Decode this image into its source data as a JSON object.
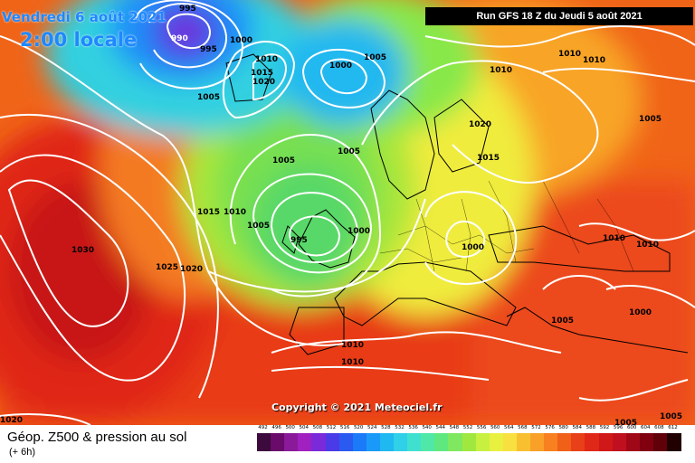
{
  "header": {
    "run_info": "Run GFS 18 Z du Jeudi 5 août 2021",
    "valid_date": "Vendredi 6 août 2021",
    "valid_time": "2:00 locale"
  },
  "map": {
    "copyright": "Copyright © 2021 Meteociel.fr",
    "isobar_labels": [
      "995",
      "990",
      "995",
      "1000",
      "1010",
      "1015",
      "1020",
      "1005",
      "1000",
      "1005",
      "1010",
      "1010",
      "1010",
      "1005",
      "1020",
      "1015",
      "1005",
      "1005",
      "1015",
      "1010",
      "1005",
      "995",
      "1000",
      "1000",
      "1010",
      "1030",
      "1025",
      "1020",
      "1010",
      "1005",
      "1000",
      "1010",
      "1010",
      "1020",
      "1005",
      "1005"
    ],
    "pressure_lows": [
      {
        "name": "low-north-atlantic",
        "value": "990"
      },
      {
        "name": "low-iceland",
        "value": "1000"
      },
      {
        "name": "low-ireland",
        "value": "995"
      }
    ],
    "pressure_highs": [
      {
        "name": "high-azores",
        "value": "1030"
      }
    ]
  },
  "footer": {
    "title": "Géop. Z500 & pression au sol",
    "subtitle": "(+ 6h)",
    "scale_labels": [
      "492",
      "496",
      "500",
      "504",
      "508",
      "512",
      "516",
      "520",
      "524",
      "528",
      "532",
      "536",
      "540",
      "544",
      "548",
      "552",
      "556",
      "560",
      "564",
      "568",
      "572",
      "576",
      "580",
      "584",
      "588",
      "592",
      "596",
      "600",
      "604",
      "608",
      "612"
    ],
    "scale_colors": [
      "#3c0a3c",
      "#6a0a6a",
      "#8a1a9a",
      "#a020c0",
      "#7a2ad8",
      "#4a3ae8",
      "#2a5af0",
      "#1a7af8",
      "#1a9af8",
      "#20b8f0",
      "#30d0e8",
      "#40e0d0",
      "#50e8a8",
      "#60e880",
      "#80e860",
      "#a0e840",
      "#c8f040",
      "#e8f040",
      "#f8e040",
      "#f8c030",
      "#f8a028",
      "#f88020",
      "#f06018",
      "#e84018",
      "#e02818",
      "#d01818",
      "#c01020",
      "#a00818",
      "#800010",
      "#600008",
      "#200000"
    ]
  },
  "colors": {
    "run_box_bg": "#000000",
    "date_text": "#1e88ff",
    "isobar": "#ffffff"
  }
}
